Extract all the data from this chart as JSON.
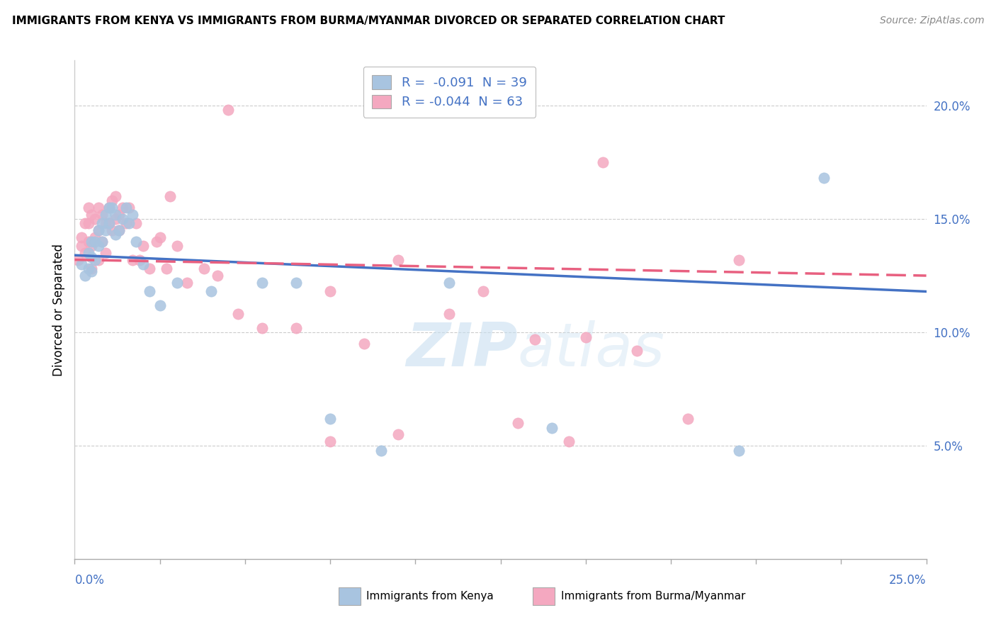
{
  "title": "IMMIGRANTS FROM KENYA VS IMMIGRANTS FROM BURMA/MYANMAR DIVORCED OR SEPARATED CORRELATION CHART",
  "source": "Source: ZipAtlas.com",
  "ylabel": "Divorced or Separated",
  "xlim": [
    0.0,
    0.25
  ],
  "ylim": [
    0.0,
    0.22
  ],
  "yticks": [
    0.05,
    0.1,
    0.15,
    0.2
  ],
  "ytick_labels": [
    "5.0%",
    "10.0%",
    "15.0%",
    "20.0%"
  ],
  "watermark_zip": "ZIP",
  "watermark_atlas": "atlas",
  "legend_kenya_R": "-0.091",
  "legend_kenya_N": "39",
  "legend_burma_R": "-0.044",
  "legend_burma_N": "63",
  "kenya_color": "#a8c4e0",
  "burma_color": "#f4a8c0",
  "kenya_line_color": "#4472c4",
  "burma_line_color": "#e86080",
  "text_blue": "#4472c4",
  "kenya_x": [
    0.002,
    0.003,
    0.004,
    0.004,
    0.005,
    0.005,
    0.005,
    0.006,
    0.006,
    0.007,
    0.007,
    0.008,
    0.008,
    0.009,
    0.009,
    0.01,
    0.01,
    0.011,
    0.012,
    0.012,
    0.013,
    0.014,
    0.015,
    0.016,
    0.017,
    0.018,
    0.02,
    0.022,
    0.025,
    0.03,
    0.04,
    0.055,
    0.065,
    0.075,
    0.09,
    0.11,
    0.14,
    0.195,
    0.22
  ],
  "kenya_y": [
    0.13,
    0.125,
    0.135,
    0.128,
    0.14,
    0.133,
    0.127,
    0.14,
    0.132,
    0.145,
    0.138,
    0.148,
    0.14,
    0.152,
    0.145,
    0.155,
    0.148,
    0.155,
    0.152,
    0.143,
    0.145,
    0.15,
    0.155,
    0.148,
    0.152,
    0.14,
    0.13,
    0.118,
    0.112,
    0.122,
    0.118,
    0.122,
    0.122,
    0.062,
    0.048,
    0.122,
    0.058,
    0.048,
    0.168
  ],
  "burma_x": [
    0.001,
    0.002,
    0.002,
    0.003,
    0.003,
    0.004,
    0.004,
    0.004,
    0.005,
    0.005,
    0.005,
    0.006,
    0.006,
    0.007,
    0.007,
    0.007,
    0.008,
    0.008,
    0.009,
    0.009,
    0.01,
    0.01,
    0.011,
    0.011,
    0.012,
    0.012,
    0.013,
    0.013,
    0.014,
    0.015,
    0.016,
    0.017,
    0.018,
    0.019,
    0.02,
    0.022,
    0.024,
    0.025,
    0.027,
    0.03,
    0.033,
    0.038,
    0.042,
    0.048,
    0.055,
    0.065,
    0.075,
    0.085,
    0.095,
    0.11,
    0.12,
    0.135,
    0.15,
    0.165,
    0.18,
    0.145,
    0.155,
    0.195,
    0.13,
    0.095,
    0.075,
    0.045,
    0.028
  ],
  "burma_y": [
    0.132,
    0.138,
    0.142,
    0.135,
    0.148,
    0.14,
    0.148,
    0.155,
    0.128,
    0.138,
    0.152,
    0.142,
    0.15,
    0.132,
    0.145,
    0.155,
    0.14,
    0.152,
    0.135,
    0.148,
    0.148,
    0.155,
    0.145,
    0.158,
    0.15,
    0.16,
    0.152,
    0.145,
    0.155,
    0.148,
    0.155,
    0.132,
    0.148,
    0.132,
    0.138,
    0.128,
    0.14,
    0.142,
    0.128,
    0.138,
    0.122,
    0.128,
    0.125,
    0.108,
    0.102,
    0.102,
    0.118,
    0.095,
    0.132,
    0.108,
    0.118,
    0.097,
    0.098,
    0.092,
    0.062,
    0.052,
    0.175,
    0.132,
    0.06,
    0.055,
    0.052,
    0.198,
    0.16
  ],
  "kenya_trendline_x": [
    0.0,
    0.25
  ],
  "kenya_trendline_y": [
    0.134,
    0.118
  ],
  "burma_trendline_x": [
    0.0,
    0.25
  ],
  "burma_trendline_y": [
    0.132,
    0.125
  ]
}
